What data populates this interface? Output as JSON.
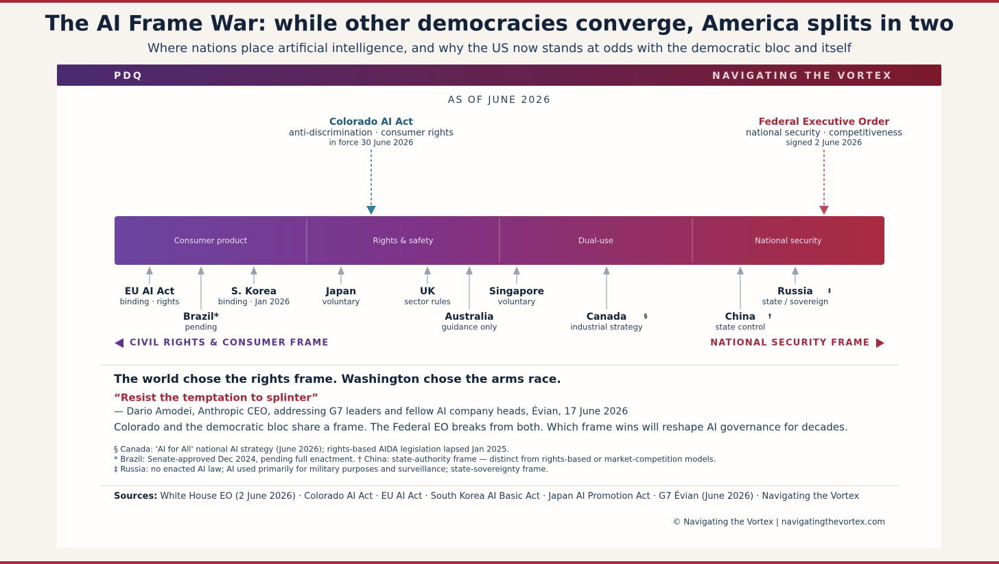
{
  "header": {
    "title": "The AI Frame War: while other democracies converge, America splits in two",
    "subtitle": "Where nations place artificial intelligence, and why the US now stands at odds with the democratic bloc and itself"
  },
  "banner": {
    "left": "PDQ",
    "right": "NAVIGATING THE VORTEX"
  },
  "as_of": "AS OF JUNE 2026",
  "callouts": [
    {
      "title": "Colorado AI Act",
      "line1": "anti-discrimination · consumer rights",
      "line2": "in force 30 June 2026"
    },
    {
      "title": "Federal Executive Order",
      "line1": "national security · competitiveness",
      "line2": "signed 2 June 2026"
    }
  ],
  "segments": [
    "Consumer product",
    "Rights & safety",
    "Dual-use",
    "National security"
  ],
  "markers": [
    {
      "name": "EU AI Act",
      "note": "binding · rights"
    },
    {
      "name": "Brazil*",
      "note": "pending"
    },
    {
      "name": "S. Korea",
      "note": "binding · Jan 2026"
    },
    {
      "name": "Japan",
      "note": "voluntary"
    },
    {
      "name": "UK",
      "note": "sector rules"
    },
    {
      "name": "Australia",
      "note": "guidance only"
    },
    {
      "name": "Singapore",
      "note": "voluntary"
    },
    {
      "name": "Canada",
      "note": "industrial strategy",
      "mark": "§"
    },
    {
      "name": "China",
      "note": "state control",
      "mark": "†"
    },
    {
      "name": "Russia",
      "note": "state / sovereign",
      "mark": "‡"
    }
  ],
  "frames": {
    "left": "CIVIL RIGHTS & CONSUMER FRAME",
    "right": "NATIONAL SECURITY FRAME"
  },
  "summary": {
    "headline": "The world chose the rights frame. Washington chose the arms race.",
    "quote": "“Resist the temptation to splinter”",
    "attribution": "— Dario Amodei, Anthropic CEO, addressing G7 leaders and fellow AI company heads, Évian, 17 June 2026",
    "body": "Colorado and the democratic bloc share a frame. The Federal EO breaks from both. Which frame wins will reshape AI governance for decades."
  },
  "footnotes": [
    "§ Canada: 'AI for All' national AI strategy (June 2026); rights-based AIDA legislation lapsed Jan 2025.",
    "* Brazil: Senate-approved Dec 2024, pending full enactment. † China: state-authority frame — distinct from rights-based or market-competition models.",
    "‡ Russia: no enacted AI law; AI used primarily for military purposes and surveillance; state-sovereignty frame."
  ],
  "sources": {
    "label": "Sources:",
    "text": "White House EO (2 June 2026) · Colorado AI Act · EU AI Act · South Korea AI Basic Act · Japan AI Promotion Act · G7 Évian (June 2026) · Navigating the Vortex"
  },
  "copyright": "© Navigating the Vortex | navigatingthevortex.com"
}
